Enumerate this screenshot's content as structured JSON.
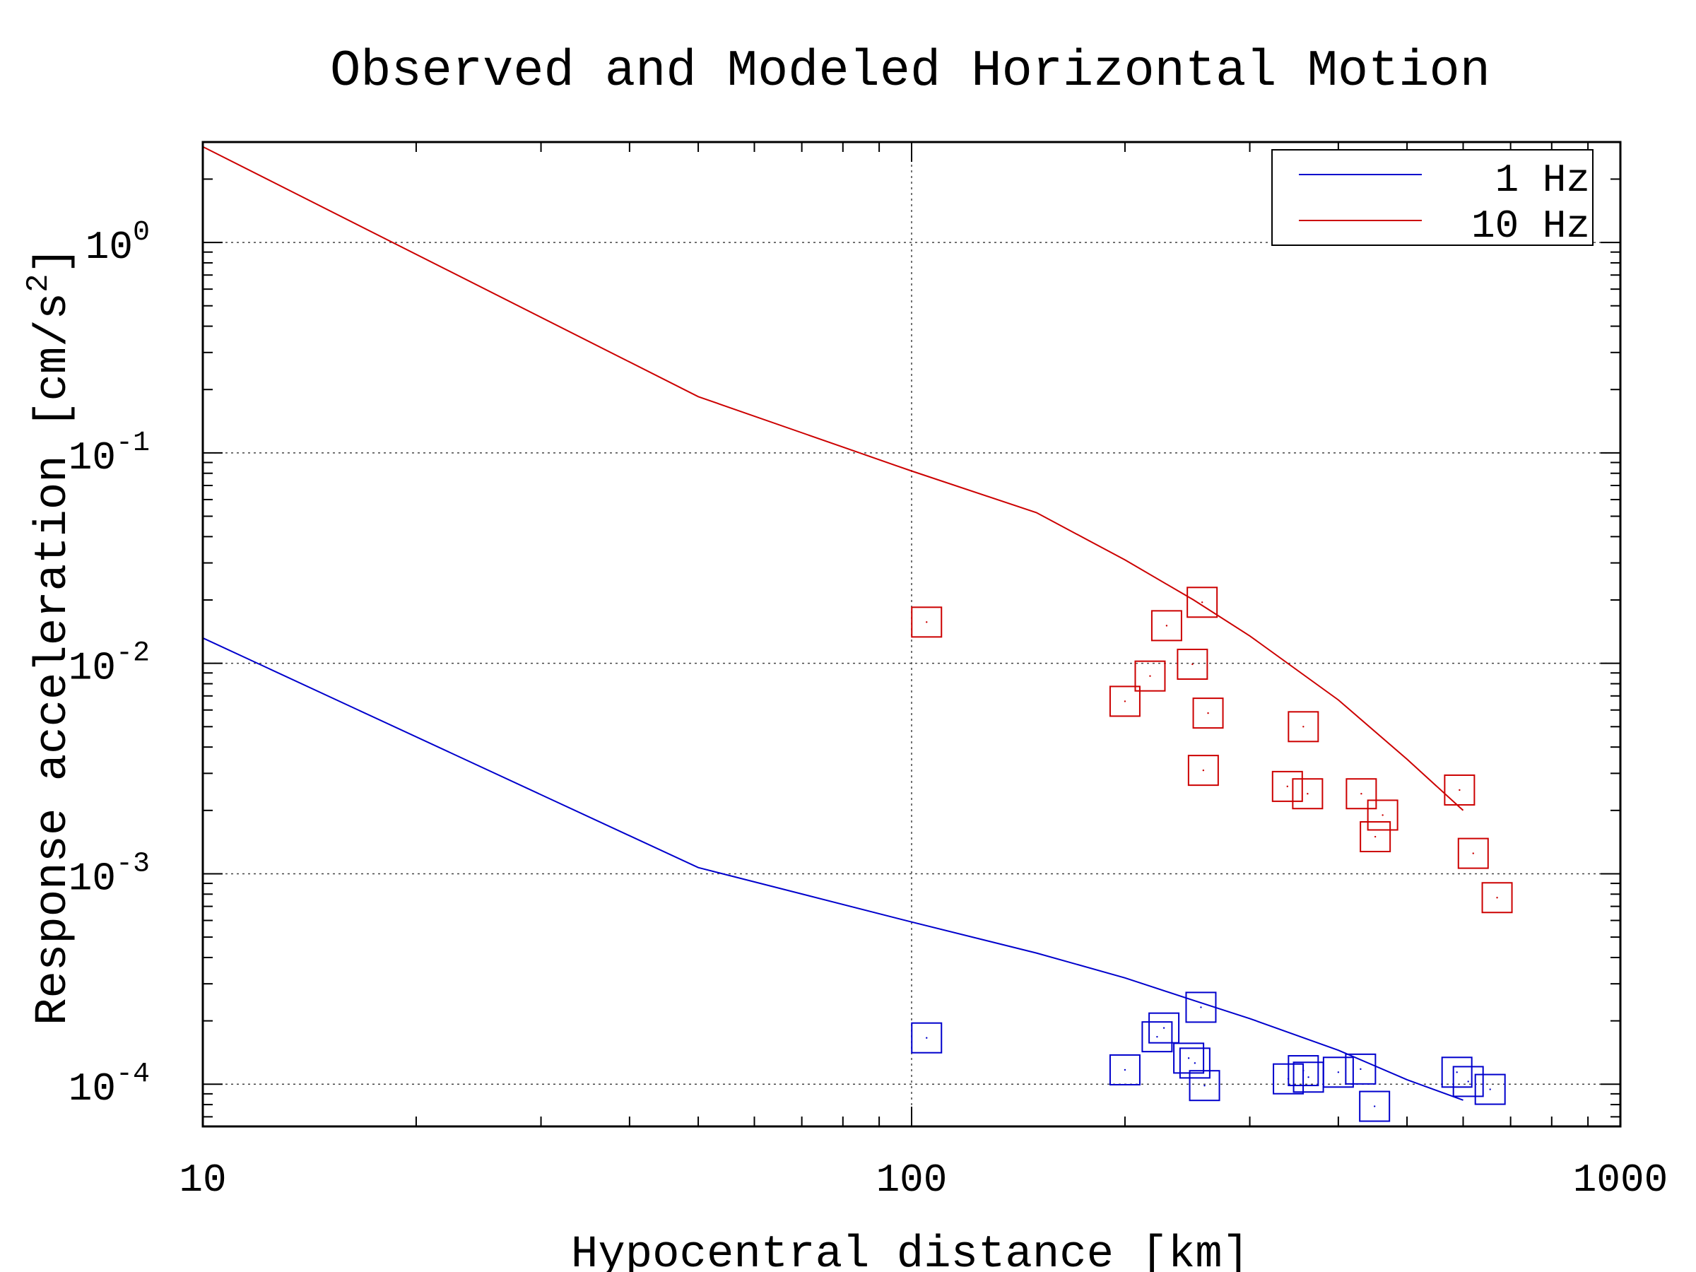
{
  "chart_data": {
    "type": "scatter",
    "title": "Observed and Modeled Horizontal Motion",
    "xlabel": "Hypocentral distance [km]",
    "ylabel": "Response acceleration [cm/s",
    "ylabel_superscript": "2",
    "ylabel_suffix": "]",
    "x_scale": "log",
    "y_scale": "log",
    "xlim": [
      10,
      1000
    ],
    "ylim": [
      6.3e-05,
      3.0
    ],
    "x_ticks": [
      {
        "value": 10,
        "label": "10"
      },
      {
        "value": 100,
        "label": "100"
      },
      {
        "value": 1000,
        "label": "1000"
      }
    ],
    "y_ticks": [
      {
        "value": 1,
        "base": "10",
        "exp": "0"
      },
      {
        "value": 0.1,
        "base": "10",
        "exp": "-1"
      },
      {
        "value": 0.01,
        "base": "10",
        "exp": "-2"
      },
      {
        "value": 0.001,
        "base": "10",
        "exp": "-3"
      },
      {
        "value": 0.0001,
        "base": "10",
        "exp": "-4"
      }
    ],
    "grid": {
      "x_values": [
        100
      ],
      "y_values": [
        1,
        0.1,
        0.01,
        0.001,
        0.0001
      ],
      "style": "dotted"
    },
    "legend": {
      "position": "top-right",
      "entries": [
        "1 Hz",
        "10 Hz"
      ]
    },
    "lines": [
      {
        "name": "1 Hz",
        "color": "#0000cc",
        "points": [
          [
            10,
            0.0132
          ],
          [
            50,
            0.00107
          ],
          [
            100,
            0.00059
          ],
          [
            150,
            0.00042
          ],
          [
            200,
            0.00032
          ],
          [
            250,
            0.00025
          ],
          [
            300,
            0.000205
          ],
          [
            400,
            0.000145
          ],
          [
            500,
            0.000105
          ],
          [
            600,
            8.4e-05
          ]
        ]
      },
      {
        "name": "10 Hz",
        "color": "#cc0000",
        "points": [
          [
            10,
            2.85
          ],
          [
            50,
            0.185
          ],
          [
            100,
            0.082
          ],
          [
            150,
            0.052
          ],
          [
            200,
            0.031
          ],
          [
            250,
            0.02
          ],
          [
            300,
            0.0135
          ],
          [
            400,
            0.0067
          ],
          [
            500,
            0.0035
          ],
          [
            600,
            0.002
          ]
        ]
      }
    ],
    "scatter": [
      {
        "series": "1 Hz",
        "color": "#0000cc",
        "marker": "open-square",
        "points": [
          [
            105,
            0.000166
          ],
          [
            200,
            0.000117
          ],
          [
            222,
            0.000168
          ],
          [
            227,
            0.000185
          ],
          [
            246,
            0.000133
          ],
          [
            251,
            0.000126
          ],
          [
            256,
            0.000232
          ],
          [
            259,
            9.85e-05
          ],
          [
            340,
            0.000106
          ],
          [
            357,
            0.000116
          ],
          [
            363,
            0.000108
          ],
          [
            400,
            0.000114
          ],
          [
            430,
            0.000118
          ],
          [
            450,
            7.85e-05
          ],
          [
            588,
            0.000114
          ],
          [
            610,
            0.000103
          ],
          [
            655,
            9.45e-05
          ]
        ]
      },
      {
        "series": "10 Hz",
        "color": "#cc0000",
        "marker": "open-square",
        "points": [
          [
            105,
            0.0157
          ],
          [
            200,
            0.0066
          ],
          [
            217,
            0.0087
          ],
          [
            229,
            0.0151
          ],
          [
            249,
            0.0099
          ],
          [
            257,
            0.0195
          ],
          [
            258,
            0.0031
          ],
          [
            262,
            0.0058
          ],
          [
            339,
            0.0026
          ],
          [
            357,
            0.005
          ],
          [
            362,
            0.0024
          ],
          [
            431,
            0.0024
          ],
          [
            451,
            0.0015
          ],
          [
            462,
            0.0019
          ],
          [
            593,
            0.0025
          ],
          [
            620,
            0.00125
          ],
          [
            670,
            0.00077
          ]
        ]
      }
    ]
  }
}
